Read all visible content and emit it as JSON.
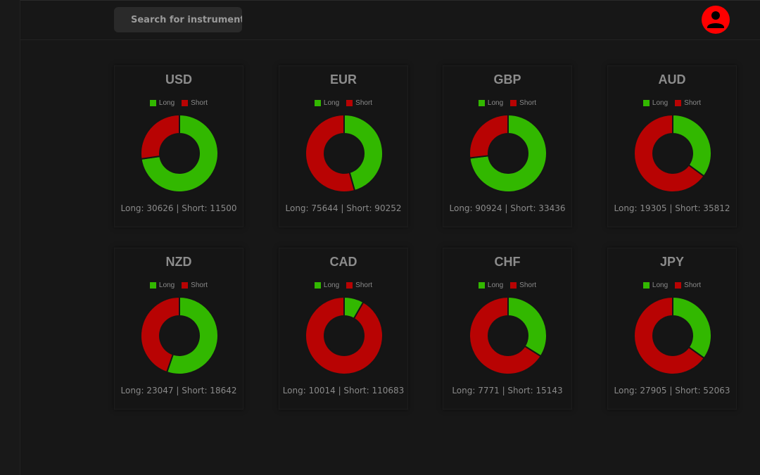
{
  "search": {
    "placeholder": "Search for instrument"
  },
  "colors": {
    "long": "#32b800",
    "short": "#b80303",
    "avatar": "#ff0000"
  },
  "icons": {
    "avatar": "user-icon"
  },
  "legend": {
    "long_label": "Long",
    "short_label": "Short"
  },
  "cards": [
    {
      "title": "USD",
      "footer": "Long: 30626 | Short: 11500"
    },
    {
      "title": "EUR",
      "footer": "Long: 75644 | Short: 90252"
    },
    {
      "title": "GBP",
      "footer": "Long: 90924 | Short: 33436"
    },
    {
      "title": "AUD",
      "footer": "Long: 19305 | Short: 35812"
    },
    {
      "title": "NZD",
      "footer": "Long: 23047 | Short: 18642"
    },
    {
      "title": "CAD",
      "footer": "Long: 10014 | Short: 110683"
    },
    {
      "title": "CHF",
      "footer": "Long: 7771 | Short: 15143"
    },
    {
      "title": "JPY",
      "footer": "Long: 27905 | Short: 52063"
    }
  ],
  "chart_data": [
    {
      "type": "pie",
      "title": "USD",
      "categories": [
        "Long",
        "Short"
      ],
      "values": [
        30626,
        11500
      ]
    },
    {
      "type": "pie",
      "title": "EUR",
      "categories": [
        "Long",
        "Short"
      ],
      "values": [
        75644,
        90252
      ]
    },
    {
      "type": "pie",
      "title": "GBP",
      "categories": [
        "Long",
        "Short"
      ],
      "values": [
        90924,
        33436
      ]
    },
    {
      "type": "pie",
      "title": "AUD",
      "categories": [
        "Long",
        "Short"
      ],
      "values": [
        19305,
        35812
      ]
    },
    {
      "type": "pie",
      "title": "NZD",
      "categories": [
        "Long",
        "Short"
      ],
      "values": [
        23047,
        18642
      ]
    },
    {
      "type": "pie",
      "title": "CAD",
      "categories": [
        "Long",
        "Short"
      ],
      "values": [
        10014,
        110683
      ]
    },
    {
      "type": "pie",
      "title": "CHF",
      "categories": [
        "Long",
        "Short"
      ],
      "values": [
        7771,
        15143
      ]
    },
    {
      "type": "pie",
      "title": "JPY",
      "categories": [
        "Long",
        "Short"
      ],
      "values": [
        27905,
        52063
      ]
    }
  ]
}
